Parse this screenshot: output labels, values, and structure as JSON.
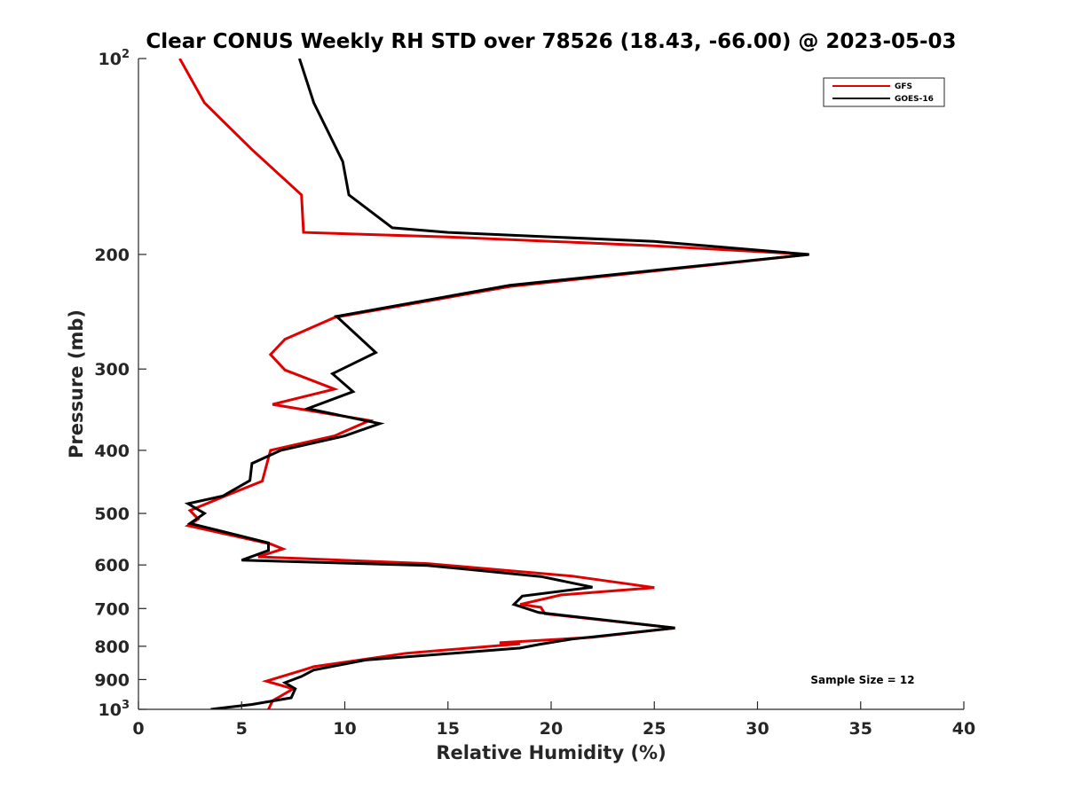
{
  "chart_data": {
    "type": "line",
    "title": "Clear CONUS Weekly RH STD over 78526 (18.43, -66.00) @ 2023-05-03",
    "xlabel": "Relative Humidity (%)",
    "ylabel": "Pressure (mb)",
    "xlim": [
      0,
      40
    ],
    "ylim": [
      1000,
      100
    ],
    "y_scale": "log",
    "y_reversed": true,
    "grid": false,
    "legend_position": "top-right",
    "x_ticks": [
      0,
      5,
      10,
      15,
      20,
      25,
      30,
      35,
      40
    ],
    "x_tick_labels": [
      "0",
      "5",
      "10",
      "15",
      "20",
      "25",
      "30",
      "35",
      "40"
    ],
    "y_ticks": [
      100,
      200,
      300,
      400,
      500,
      600,
      700,
      800,
      900,
      1000
    ],
    "y_tick_labels": [
      {
        "base": "10",
        "exp": "2"
      },
      {
        "base": "200",
        "exp": ""
      },
      {
        "base": "300",
        "exp": ""
      },
      {
        "base": "400",
        "exp": ""
      },
      {
        "base": "500",
        "exp": ""
      },
      {
        "base": "600",
        "exp": ""
      },
      {
        "base": "700",
        "exp": ""
      },
      {
        "base": "800",
        "exp": ""
      },
      {
        "base": "900",
        "exp": ""
      },
      {
        "base": "10",
        "exp": "3"
      }
    ],
    "annotation": "Sample Size = 12",
    "series": [
      {
        "name": "GFS",
        "color": "#e00000",
        "points": [
          [
            2.0,
            100
          ],
          [
            3.2,
            117
          ],
          [
            5.5,
            138
          ],
          [
            7.9,
            162
          ],
          [
            8.0,
            185
          ],
          [
            15.0,
            188
          ],
          [
            25.0,
            194
          ],
          [
            32.5,
            200
          ],
          [
            18.0,
            224
          ],
          [
            9.5,
            250
          ],
          [
            7.1,
            270
          ],
          [
            6.4,
            285
          ],
          [
            7.1,
            301
          ],
          [
            9.5,
            322
          ],
          [
            6.5,
            340
          ],
          [
            11.2,
            360
          ],
          [
            9.5,
            380
          ],
          [
            6.4,
            400
          ],
          [
            6.0,
            446
          ],
          [
            4.0,
            473
          ],
          [
            2.5,
            495
          ],
          [
            2.9,
            510
          ],
          [
            2.4,
            522
          ],
          [
            6.4,
            557
          ],
          [
            7.0,
            567
          ],
          [
            5.8,
            583
          ],
          [
            14.0,
            597
          ],
          [
            21.0,
            624
          ],
          [
            25.0,
            650
          ],
          [
            20.5,
            667
          ],
          [
            18.5,
            690
          ],
          [
            19.5,
            697
          ],
          [
            19.7,
            713
          ],
          [
            26.0,
            750
          ],
          [
            22.0,
            775
          ],
          [
            17.5,
            790
          ],
          [
            18.5,
            793
          ],
          [
            13.0,
            820
          ],
          [
            8.5,
            860
          ],
          [
            8.0,
            870
          ],
          [
            6.2,
            905
          ],
          [
            7.5,
            930
          ],
          [
            6.5,
            970
          ],
          [
            6.3,
            1000
          ]
        ]
      },
      {
        "name": "GOES-16",
        "color": "#000000",
        "points": [
          [
            7.8,
            100
          ],
          [
            8.5,
            117
          ],
          [
            9.9,
            144
          ],
          [
            10.2,
            162
          ],
          [
            12.3,
            182
          ],
          [
            15.0,
            185
          ],
          [
            25.0,
            191
          ],
          [
            32.5,
            200
          ],
          [
            18.0,
            223
          ],
          [
            9.6,
            249
          ],
          [
            11.5,
            283
          ],
          [
            9.4,
            305
          ],
          [
            10.4,
            325
          ],
          [
            8.2,
            345
          ],
          [
            11.7,
            364
          ],
          [
            10.0,
            380
          ],
          [
            6.9,
            400
          ],
          [
            5.5,
            419
          ],
          [
            5.4,
            445
          ],
          [
            4.1,
            470
          ],
          [
            2.4,
            483
          ],
          [
            3.2,
            500
          ],
          [
            2.5,
            518
          ],
          [
            6.3,
            555
          ],
          [
            6.3,
            570
          ],
          [
            5.0,
            590
          ],
          [
            14.0,
            601
          ],
          [
            19.5,
            625
          ],
          [
            22.0,
            649
          ],
          [
            18.6,
            670
          ],
          [
            18.2,
            690
          ],
          [
            19.4,
            710
          ],
          [
            26.0,
            750
          ],
          [
            21.0,
            780
          ],
          [
            19.4,
            795
          ],
          [
            18.5,
            805
          ],
          [
            11.0,
            840
          ],
          [
            8.5,
            870
          ],
          [
            7.9,
            890
          ],
          [
            7.1,
            910
          ],
          [
            7.6,
            930
          ],
          [
            7.4,
            960
          ],
          [
            5.5,
            983
          ],
          [
            3.5,
            1000
          ]
        ]
      }
    ]
  }
}
